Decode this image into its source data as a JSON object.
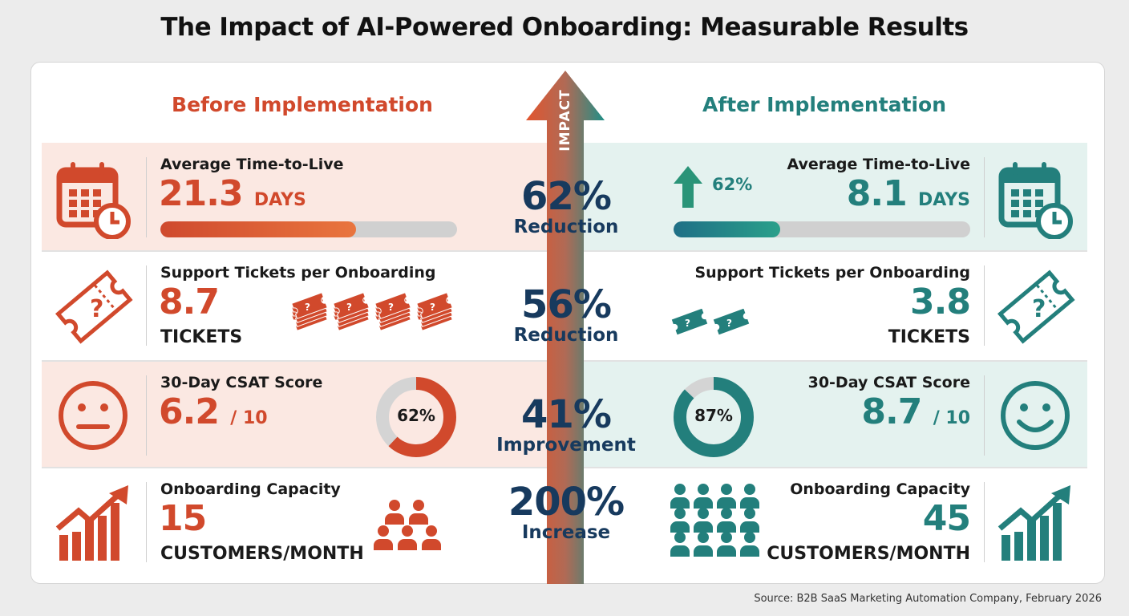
{
  "title": "The Impact of AI-Powered Onboarding: Measurable Results",
  "before_heading": "Before Implementation",
  "after_heading": "After Implementation",
  "arrow_label": "IMPACT",
  "colors": {
    "before": "#d1492c",
    "after": "#237f7c",
    "center": "#173a5e"
  },
  "rows": [
    {
      "label": "Average Time-to-Live",
      "before": {
        "value": "21.3",
        "unit": "DAYS",
        "bar_fill": 0.66
      },
      "after": {
        "value": "8.1",
        "unit": "DAYS",
        "bar_fill": 0.36,
        "badge": "62%"
      },
      "change": {
        "value": "62%",
        "label": "Reduction"
      },
      "icon": "calendar-clock-icon"
    },
    {
      "label": "Support Tickets per Onboarding",
      "before": {
        "value": "8.7",
        "unit": "TICKETS",
        "ticket_stacks": 4
      },
      "after": {
        "value": "3.8",
        "unit": "TICKETS",
        "ticket_stacks": 2
      },
      "change": {
        "value": "56%",
        "label": "Reduction"
      },
      "icon": "ticket-question-icon"
    },
    {
      "label": "30-Day CSAT Score",
      "before": {
        "value": "6.2",
        "unit": "/ 10",
        "donut": "62%",
        "donut_pct": 62
      },
      "after": {
        "value": "8.7",
        "unit": "/ 10",
        "donut": "87%",
        "donut_pct": 87
      },
      "change": {
        "value": "41%",
        "label": "Improvement"
      },
      "icon": "face-icon"
    },
    {
      "label": "Onboarding Capacity",
      "before": {
        "value": "15",
        "unit": "CUSTOMERS/MONTH",
        "people": 5
      },
      "after": {
        "value": "45",
        "unit": "CUSTOMERS/MONTH",
        "people": 12
      },
      "change": {
        "value": "200%",
        "label": "Increase"
      },
      "icon": "growth-chart-icon"
    }
  ],
  "source": "Source: B2B SaaS Marketing Automation Company, February 2026"
}
